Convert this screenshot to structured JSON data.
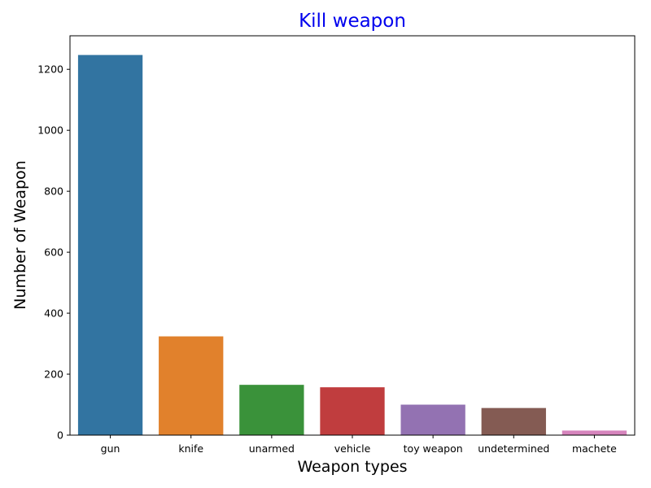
{
  "chart_data": {
    "type": "bar",
    "title": "Kill weapon",
    "title_color": "#0000ee",
    "xlabel": "Weapon types",
    "ylabel": "Number of Weapon",
    "categories": [
      "gun",
      "knife",
      "unarmed",
      "vehicle",
      "toy weapon",
      "undetermined",
      "machete"
    ],
    "values": [
      1247,
      324,
      165,
      157,
      100,
      89,
      15
    ],
    "colors": [
      "#3274a1",
      "#e1812c",
      "#3a923a",
      "#c03d3e",
      "#9372b2",
      "#845b53",
      "#d684bd"
    ],
    "ylim": [
      0,
      1310
    ],
    "yticks": [
      0,
      200,
      400,
      600,
      800,
      1000,
      1200
    ],
    "grid": false,
    "legend": "none"
  }
}
